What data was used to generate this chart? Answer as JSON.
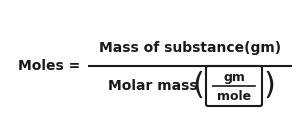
{
  "bg_color": "#ffffff",
  "text_color": "#1a1a1a",
  "moles_label": "Moles =",
  "numerator": "Mass of substance(gm)",
  "denominator_text": "Molar mass",
  "box_numerator": "gm",
  "box_denominator": "mole",
  "fig_width": 3.0,
  "fig_height": 1.28,
  "dpi": 100
}
